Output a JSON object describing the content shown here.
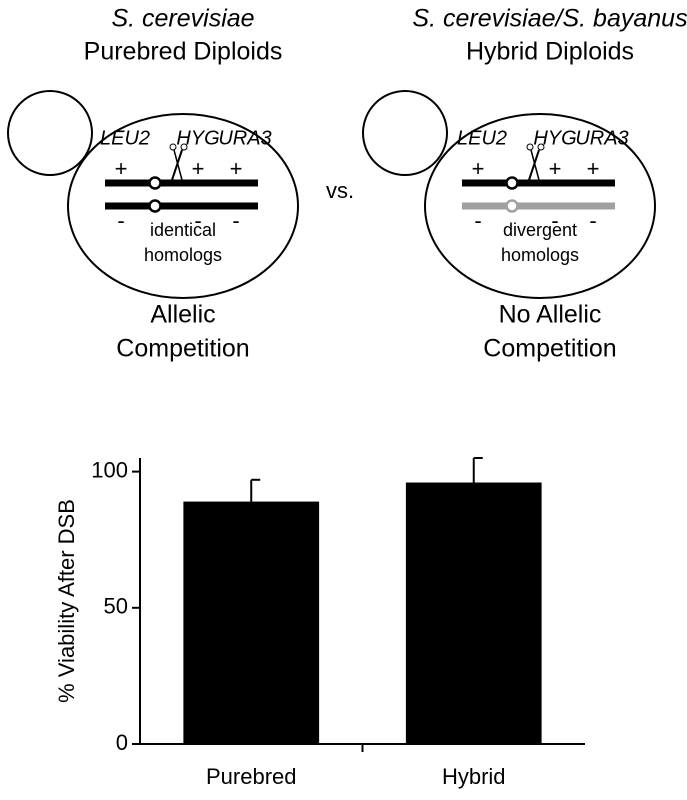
{
  "diagram": {
    "separator": "vs.",
    "panels": [
      {
        "title": [
          "S. cerevisiae",
          "Purebred Diploids"
        ],
        "genes": [
          "LEU2",
          "HYG",
          "URA3"
        ],
        "top_signs": [
          "+",
          "+",
          "+"
        ],
        "bottom_signs": [
          "-",
          "-",
          "-"
        ],
        "homologs": [
          "identical",
          "homologs"
        ],
        "outcome": [
          "Allelic",
          "Competition"
        ]
      },
      {
        "title": [
          "S. cerevisiae/S. bayanus",
          "Hybrid Diploids"
        ],
        "genes": [
          "LEU2",
          "HYG",
          "URA3"
        ],
        "top_signs": [
          "+",
          "+",
          "+"
        ],
        "bottom_signs": [
          "-",
          "-",
          "-"
        ],
        "homologs": [
          "divergent",
          "homologs"
        ],
        "outcome": [
          "No Allelic",
          "Competition"
        ]
      }
    ]
  },
  "chart_data": {
    "type": "bar",
    "y_label": "% Viability After DSB",
    "categories": [
      "Purebred",
      "Hybrid"
    ],
    "values": [
      89,
      96
    ],
    "errors": [
      8,
      9
    ],
    "color": "#000000",
    "ylim": [
      0,
      105
    ],
    "yticks": [
      0,
      50,
      100
    ]
  }
}
